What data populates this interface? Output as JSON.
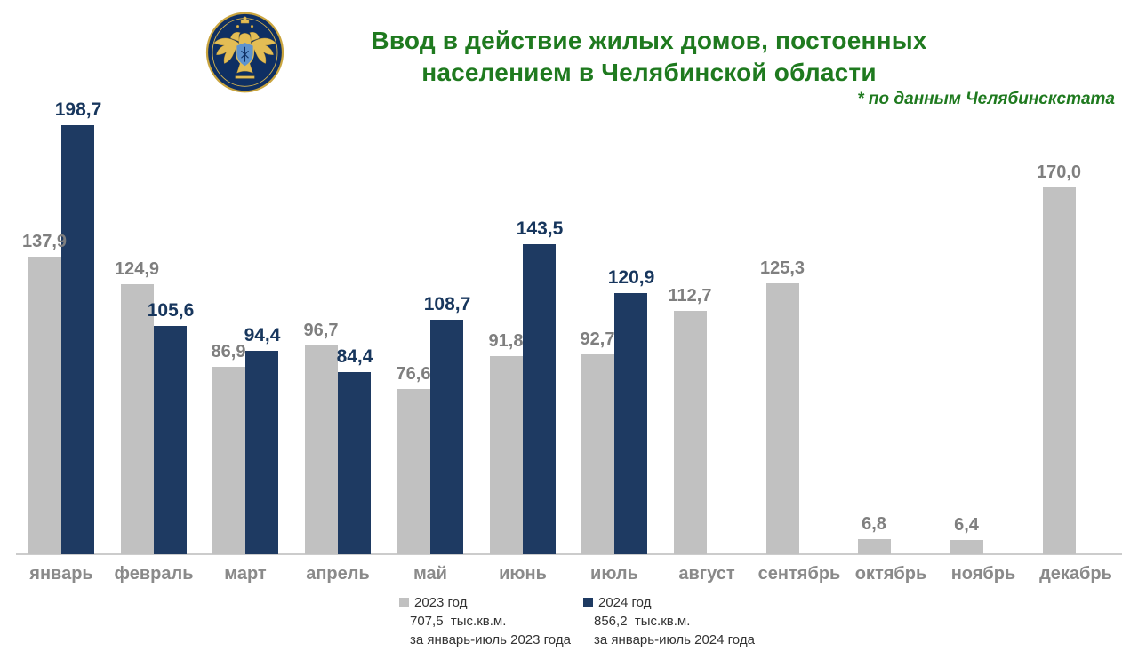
{
  "header": {
    "title_line1": "Ввод в действие жилых домов, постоенных",
    "title_line2": "населением в Челябинской области",
    "source_note": "* по данным Челябинскстата",
    "title_color": "#1f7a1f",
    "logo_name": "rosstat-emblem"
  },
  "chart_data": {
    "type": "bar",
    "title": "Ввод в действие жилых домов, постоенных населением в Челябинской области",
    "xlabel": "",
    "ylabel": "тыс.кв.м.",
    "ylim": [
      0,
      200
    ],
    "grid": false,
    "legend_position": "bottom",
    "categories": [
      "январь",
      "февраль",
      "март",
      "апрель",
      "май",
      "июнь",
      "июль",
      "август",
      "сентябрь",
      "октябрь",
      "ноябрь",
      "декабрь"
    ],
    "series": [
      {
        "name": "2023 год",
        "color": "#c1c1c1",
        "values": [
          137.9,
          124.9,
          86.9,
          96.7,
          76.6,
          91.8,
          92.7,
          112.7,
          125.3,
          6.8,
          6.4,
          170.0
        ],
        "labels": [
          "137,9",
          "124,9",
          "86,9",
          "96,7",
          "76,6",
          "91,8",
          "92,7",
          "112,7",
          "125,3",
          "6,8",
          "6,4",
          "170,0"
        ]
      },
      {
        "name": "2024 год",
        "color": "#1e3a62",
        "values": [
          198.7,
          105.6,
          94.4,
          84.4,
          108.7,
          143.5,
          120.9,
          null,
          null,
          null,
          null,
          null
        ],
        "labels": [
          "198,7",
          "105,6",
          "94,4",
          "84,4",
          "108,7",
          "143,5",
          "120,9",
          null,
          null,
          null,
          null,
          null
        ]
      }
    ]
  },
  "legend": {
    "items": [
      {
        "year_label": "2023 год",
        "volume": "707,5  тыс.кв.м.",
        "period": "за январь-июль 2023 года",
        "color": "#c1c1c1"
      },
      {
        "year_label": "2024 год",
        "volume": "856,2  тыс.кв.м.",
        "period": "за январь-июль 2024 года",
        "color": "#1e3a62"
      }
    ]
  }
}
